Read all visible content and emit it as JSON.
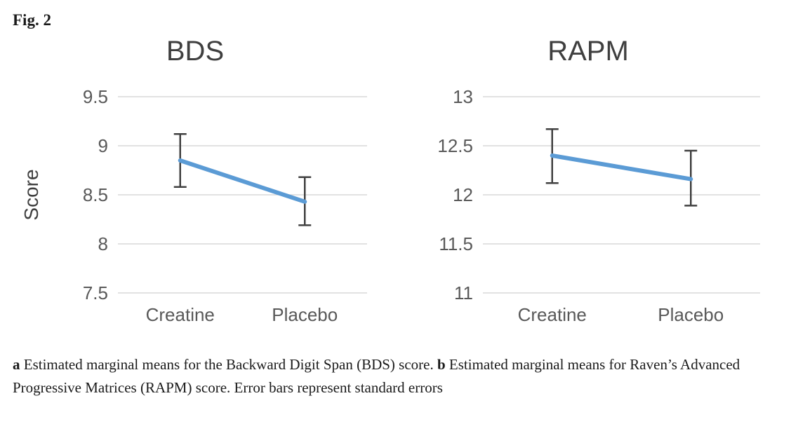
{
  "figure_label": "Fig. 2",
  "colors": {
    "line": "#5b9bd5",
    "error_bar": "#404040",
    "gridline": "#d9d9d9",
    "axis_text": "#595959",
    "title_text": "#3f3f3f"
  },
  "chart_data": [
    {
      "type": "line",
      "title": "BDS",
      "ylabel": "Score",
      "categories": [
        "Creatine",
        "Placebo"
      ],
      "values": [
        8.85,
        8.43
      ],
      "error_low": [
        8.58,
        8.19
      ],
      "error_high": [
        9.12,
        8.68
      ],
      "ylim": [
        7.5,
        9.5
      ],
      "yticks": [
        7.5,
        8,
        8.5,
        9,
        9.5
      ],
      "grid": true,
      "legend": false
    },
    {
      "type": "line",
      "title": "RAPM",
      "ylabel": "",
      "categories": [
        "Creatine",
        "Placebo"
      ],
      "values": [
        12.4,
        12.16
      ],
      "error_low": [
        12.12,
        11.89
      ],
      "error_high": [
        12.67,
        12.45
      ],
      "ylim": [
        11,
        13
      ],
      "yticks": [
        11,
        11.5,
        12,
        12.5,
        13
      ],
      "grid": true,
      "legend": false
    }
  ],
  "caption": {
    "part_a_label": "a",
    "part_a_text": " Estimated marginal means for the Backward Digit Span (BDS) score. ",
    "part_b_label": "b",
    "part_b_text": " Estimated marginal means for Raven’s Advanced Progressive Matrices (RAPM) score. Error bars represent standard errors"
  }
}
